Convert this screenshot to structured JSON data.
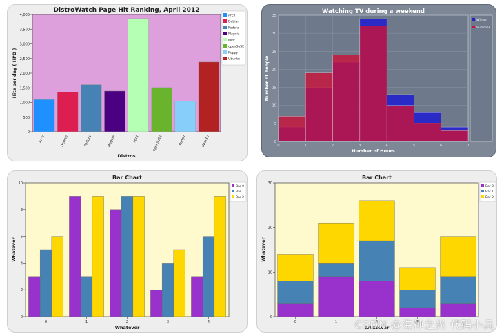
{
  "chart_data": [
    {
      "type": "bar",
      "title": "DistroWatch Page Hit Ranking, April 2012",
      "xlabel": "Distros",
      "ylabel": "Hits per day ( HPD )",
      "ylim": [
        0,
        4000
      ],
      "yticks": [
        "0",
        "500",
        "1,000",
        "1,500",
        "2,000",
        "2,500",
        "3,000",
        "3,500",
        "4,000"
      ],
      "categories": [
        "Arch",
        "Debian",
        "Fedora",
        "Mageia",
        "Mint",
        "openSuSE",
        "Puppy",
        "Ubuntu"
      ],
      "values": [
        1100,
        1350,
        1610,
        1390,
        3860,
        1510,
        1040,
        2380
      ],
      "colors": [
        "#1e90ff",
        "#dc1e50",
        "#4682b4",
        "#4b0082",
        "#b4ffb4",
        "#6ab42d",
        "#87cefa",
        "#b22222"
      ],
      "legend": [
        "Arch",
        "Debian",
        "Fedora",
        "Mageia",
        "Mint",
        "openSuSE",
        "Puppy",
        "Ubuntu"
      ],
      "legend_position": "right",
      "background": "#dda0dd"
    },
    {
      "type": "histogram",
      "title": "Watching TV during a weekend",
      "xlabel": "Number of Hours",
      "ylabel": "Number of People",
      "xlim": [
        0,
        7
      ],
      "ylim": [
        0,
        35
      ],
      "xticks": [
        "0",
        "1",
        "2",
        "3",
        "4",
        "5",
        "6",
        "7"
      ],
      "yticks": [
        "0",
        "5",
        "10",
        "15",
        "20",
        "25",
        "30",
        "35"
      ],
      "bins": [
        0,
        1,
        2,
        3,
        4,
        5,
        6
      ],
      "series": [
        {
          "name": "Winter",
          "values": [
            4,
            15,
            22,
            34,
            13,
            8,
            4
          ],
          "color": "#2222cc"
        },
        {
          "name": "Summer",
          "values": [
            7,
            19,
            24,
            32,
            10,
            5,
            3
          ],
          "color": "#c8143c"
        }
      ],
      "legend_position": "right"
    },
    {
      "type": "bar",
      "title": "Bar Chart",
      "xlabel": "Whatever",
      "ylabel": "Whatever",
      "ylim": [
        0,
        10
      ],
      "yticks": [
        "0",
        "2",
        "4",
        "6",
        "8",
        "10"
      ],
      "categories": [
        "0",
        "1",
        "2",
        "3",
        "4"
      ],
      "series": [
        {
          "name": "Bar 0",
          "values": [
            3,
            9,
            8,
            2,
            3
          ],
          "color": "#9932cc"
        },
        {
          "name": "Bar 1",
          "values": [
            5,
            3,
            9,
            4,
            6
          ],
          "color": "#4682b4"
        },
        {
          "name": "Bar 2",
          "values": [
            6,
            9,
            9,
            5,
            9
          ],
          "color": "#ffd700"
        }
      ],
      "legend_position": "top-right"
    },
    {
      "type": "bar",
      "stacked": true,
      "title": "Bar Chart",
      "xlabel": "Whatever",
      "ylabel": "Whatever",
      "ylim": [
        0,
        30
      ],
      "yticks": [
        "0",
        "10",
        "20",
        "30"
      ],
      "categories": [
        "0",
        "1",
        "2",
        "3",
        "4"
      ],
      "series": [
        {
          "name": "Bar 0",
          "values": [
            3,
            9,
            8,
            2,
            3
          ],
          "color": "#9932cc"
        },
        {
          "name": "Bar 1",
          "values": [
            5,
            3,
            9,
            4,
            6
          ],
          "color": "#4682b4"
        },
        {
          "name": "Bar 2",
          "values": [
            6,
            9,
            9,
            5,
            9
          ],
          "color": "#ffd700"
        }
      ],
      "legend_position": "top-right"
    }
  ],
  "watermark": "CSDN @海神之光 代码小兵"
}
